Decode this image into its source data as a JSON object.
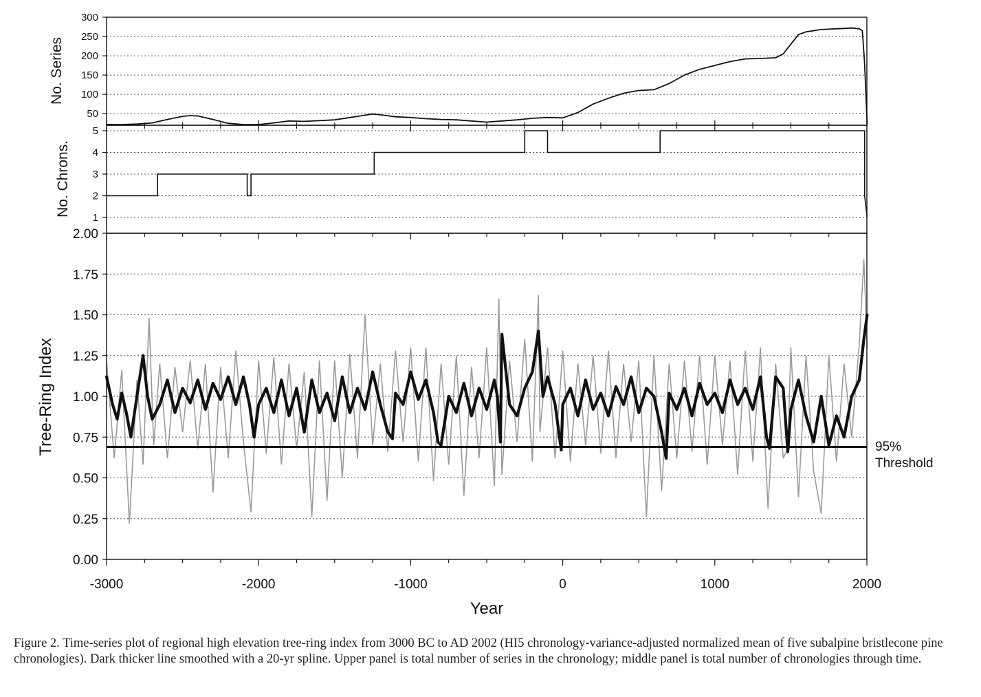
{
  "caption": "Figure 2. Time-series plot of regional high elevation tree-ring index from 3000 BC to AD 2002 (HI5 chronology-variance-adjusted normalized mean of five subalpine bristlecone pine chronologies). Dark thicker line smoothed with a 20-yr spline. Upper panel is total number of series in the chronology; middle panel is total number of chronologies through time.",
  "threshold_label": [
    "95%",
    "Threshold"
  ],
  "chart_data": [
    {
      "type": "line",
      "panel": "series",
      "ylabel": "No. Series",
      "xlim": [
        -3000,
        2000
      ],
      "ylim": [
        20,
        300
      ],
      "yticks": [
        50,
        100,
        150,
        200,
        250,
        300
      ],
      "grid": true,
      "series": [
        {
          "x": [
            -3000,
            -2900,
            -2800,
            -2700,
            -2600,
            -2500,
            -2450,
            -2400,
            -2300,
            -2200,
            -2100,
            -2050,
            -2000,
            -1900,
            -1800,
            -1700,
            -1600,
            -1500,
            -1400,
            -1300,
            -1250,
            -1200,
            -1100,
            -1000,
            -900,
            -800,
            -700,
            -600,
            -500,
            -400,
            -300,
            -200,
            -100,
            0,
            100,
            200,
            300,
            400,
            500,
            600,
            700,
            800,
            900,
            1000,
            1100,
            1200,
            1300,
            1400,
            1450,
            1500,
            1550,
            1600,
            1700,
            1800,
            1850,
            1900,
            1950,
            1970,
            1985,
            2002
          ],
          "values": [
            22,
            21,
            23,
            26,
            35,
            43,
            45,
            44,
            35,
            25,
            18,
            13,
            18,
            26,
            31,
            30,
            32,
            34,
            40,
            46,
            49,
            47,
            42,
            40,
            37,
            35,
            34,
            31,
            28,
            31,
            34,
            38,
            40,
            39,
            53,
            75,
            90,
            103,
            110,
            112,
            128,
            150,
            165,
            175,
            185,
            192,
            193,
            195,
            205,
            230,
            255,
            262,
            268,
            270,
            271,
            272,
            270,
            265,
            180,
            20
          ]
        }
      ]
    },
    {
      "type": "line",
      "panel": "chrons",
      "ylabel": "No. Chrons.",
      "xlim": [
        -3000,
        2000
      ],
      "ylim": [
        1,
        5
      ],
      "yticks": [
        1,
        2,
        3,
        4,
        5
      ],
      "grid": true,
      "series": [
        {
          "x": [
            -3000,
            -2665,
            -2665,
            -2075,
            -2075,
            -2050,
            -2050,
            -1240,
            -1240,
            -250,
            -250,
            -100,
            -100,
            640,
            640,
            1985,
            1985,
            2002
          ],
          "values": [
            2,
            2,
            3,
            3,
            2,
            2,
            3,
            3,
            4,
            4,
            5,
            5,
            4,
            4,
            5,
            5,
            2,
            1
          ]
        }
      ]
    },
    {
      "type": "line",
      "panel": "index",
      "xlabel": "Year",
      "ylabel": "Tree-Ring Index",
      "xlim": [
        -3000,
        2000
      ],
      "ylim": [
        0,
        2
      ],
      "xticks": [
        -3000,
        -2000,
        -1000,
        0,
        1000,
        2000
      ],
      "yticks": [
        "0.00",
        "0.25",
        "0.50",
        "0.75",
        "1.00",
        "1.25",
        "1.50",
        "1.75",
        "2.00"
      ],
      "grid": true,
      "threshold": 0.69,
      "series": [
        {
          "style": "annual",
          "color": "#9a9a9a",
          "x": [
            -3000,
            -2950,
            -2900,
            -2850,
            -2800,
            -2760,
            -2720,
            -2690,
            -2650,
            -2600,
            -2550,
            -2500,
            -2450,
            -2400,
            -2350,
            -2300,
            -2250,
            -2200,
            -2150,
            -2100,
            -2050,
            -2000,
            -1950,
            -1900,
            -1850,
            -1800,
            -1750,
            -1700,
            -1650,
            -1600,
            -1550,
            -1500,
            -1450,
            -1400,
            -1350,
            -1300,
            -1250,
            -1200,
            -1150,
            -1100,
            -1050,
            -1000,
            -950,
            -900,
            -850,
            -800,
            -750,
            -700,
            -650,
            -600,
            -550,
            -500,
            -450,
            -420,
            -400,
            -350,
            -300,
            -250,
            -200,
            -160,
            -150,
            -100,
            -50,
            0,
            50,
            100,
            150,
            200,
            250,
            300,
            350,
            400,
            450,
            500,
            550,
            600,
            650,
            700,
            750,
            800,
            850,
            900,
            950,
            1000,
            1050,
            1100,
            1150,
            1200,
            1250,
            1300,
            1350,
            1400,
            1450,
            1480,
            1500,
            1550,
            1600,
            1650,
            1700,
            1750,
            1800,
            1850,
            1900,
            1950,
            1980,
            2002
          ],
          "values": [
            1.22,
            0.62,
            1.16,
            0.22,
            1.1,
            0.58,
            1.48,
            0.7,
            1.2,
            0.62,
            1.18,
            0.78,
            1.22,
            0.68,
            1.2,
            0.41,
            1.18,
            0.62,
            1.28,
            0.72,
            0.29,
            1.22,
            0.65,
            1.24,
            0.58,
            1.2,
            0.68,
            1.15,
            0.26,
            1.22,
            0.36,
            1.22,
            0.5,
            1.26,
            0.62,
            1.5,
            0.7,
            1.2,
            0.66,
            1.28,
            0.72,
            1.3,
            0.6,
            1.3,
            0.48,
            1.2,
            0.58,
            1.25,
            0.39,
            1.18,
            0.62,
            1.3,
            0.45,
            1.6,
            0.52,
            1.22,
            0.72,
            1.35,
            0.6,
            1.62,
            0.78,
            1.3,
            0.62,
            1.28,
            0.6,
            1.2,
            0.7,
            1.25,
            0.65,
            1.28,
            0.62,
            1.2,
            0.72,
            1.22,
            0.26,
            1.25,
            0.42,
            1.2,
            0.62,
            1.22,
            0.66,
            1.25,
            0.58,
            1.25,
            0.7,
            1.22,
            0.52,
            1.28,
            0.6,
            1.3,
            0.31,
            1.2,
            0.62,
            0.68,
            1.3,
            0.38,
            1.25,
            0.54,
            0.28,
            1.25,
            0.6,
            1.2,
            0.75,
            1.32,
            1.84,
            1.3
          ]
        },
        {
          "style": "smoothed 20-yr spline",
          "color": "#111111",
          "x": [
            -3000,
            -2960,
            -2930,
            -2900,
            -2870,
            -2840,
            -2800,
            -2760,
            -2730,
            -2700,
            -2650,
            -2600,
            -2550,
            -2500,
            -2450,
            -2400,
            -2350,
            -2300,
            -2250,
            -2200,
            -2150,
            -2100,
            -2060,
            -2030,
            -2000,
            -1950,
            -1900,
            -1850,
            -1800,
            -1750,
            -1700,
            -1650,
            -1600,
            -1550,
            -1500,
            -1450,
            -1400,
            -1350,
            -1300,
            -1250,
            -1200,
            -1150,
            -1120,
            -1100,
            -1050,
            -1000,
            -950,
            -900,
            -850,
            -820,
            -800,
            -750,
            -700,
            -650,
            -600,
            -550,
            -500,
            -450,
            -430,
            -410,
            -400,
            -350,
            -300,
            -250,
            -200,
            -160,
            -130,
            -100,
            -50,
            -10,
            0,
            50,
            100,
            150,
            200,
            250,
            300,
            350,
            400,
            450,
            500,
            550,
            600,
            650,
            680,
            700,
            750,
            800,
            850,
            900,
            950,
            1000,
            1050,
            1100,
            1150,
            1200,
            1250,
            1300,
            1340,
            1360,
            1400,
            1450,
            1480,
            1500,
            1550,
            1600,
            1650,
            1700,
            1750,
            1800,
            1850,
            1900,
            1950,
            1980,
            2002
          ],
          "values": [
            1.12,
            0.95,
            0.86,
            1.02,
            0.9,
            0.75,
            1.0,
            1.25,
            1.0,
            0.86,
            0.95,
            1.1,
            0.9,
            1.05,
            0.96,
            1.1,
            0.92,
            1.08,
            0.98,
            1.12,
            0.95,
            1.12,
            0.95,
            0.75,
            0.95,
            1.05,
            0.9,
            1.1,
            0.88,
            1.05,
            0.78,
            1.1,
            0.9,
            1.02,
            0.85,
            1.12,
            0.9,
            1.05,
            0.92,
            1.15,
            0.95,
            0.78,
            0.74,
            1.02,
            0.95,
            1.15,
            0.98,
            1.1,
            0.9,
            0.72,
            0.7,
            1.0,
            0.9,
            1.08,
            0.88,
            1.05,
            0.92,
            1.1,
            1.0,
            0.72,
            1.38,
            0.95,
            0.88,
            1.05,
            1.15,
            1.4,
            1.0,
            1.12,
            0.95,
            0.67,
            0.95,
            1.05,
            0.88,
            1.1,
            0.92,
            1.02,
            0.88,
            1.06,
            0.95,
            1.12,
            0.9,
            1.05,
            1.0,
            0.78,
            0.62,
            1.02,
            0.92,
            1.05,
            0.88,
            1.08,
            0.95,
            1.02,
            0.9,
            1.1,
            0.95,
            1.05,
            0.92,
            1.12,
            0.75,
            0.68,
            1.12,
            1.05,
            0.66,
            0.92,
            1.1,
            0.88,
            0.72,
            1.0,
            0.7,
            0.88,
            0.75,
            1.0,
            1.1,
            1.35,
            1.5
          ]
        }
      ]
    }
  ]
}
